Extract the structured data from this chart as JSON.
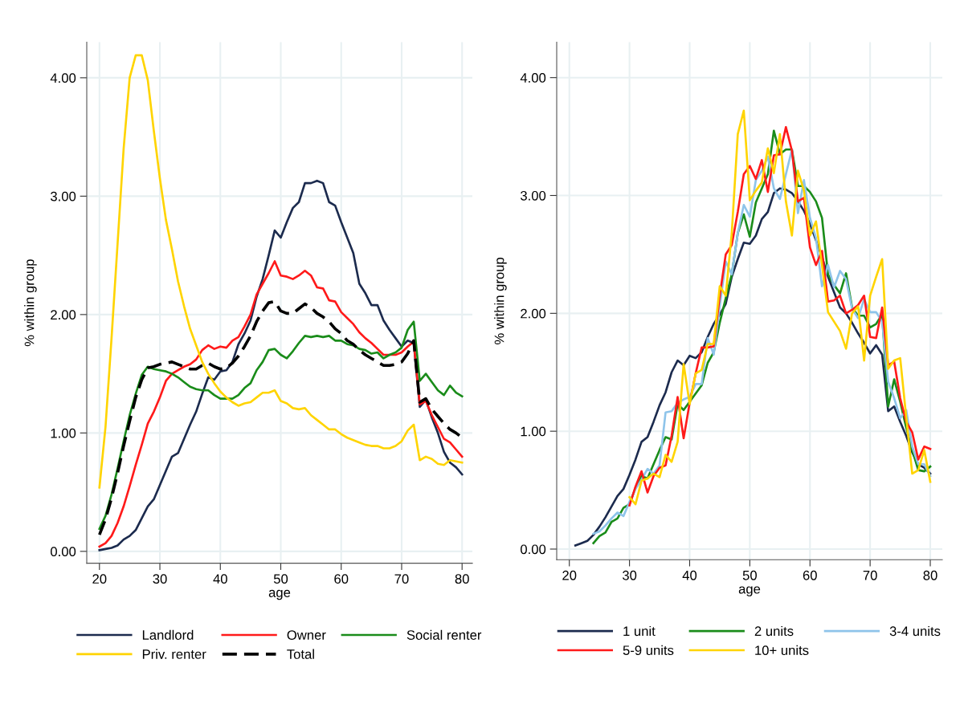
{
  "chart_data": [
    {
      "type": "line",
      "xlabel": "age",
      "ylabel": "% within group",
      "xlim": [
        17.9,
        81.7
      ],
      "ylim": [
        -0.1,
        4.3
      ],
      "xticks": [
        20,
        30,
        40,
        50,
        60,
        70,
        80
      ],
      "yticks": [
        {
          "value": 0,
          "label": "0.00"
        },
        {
          "value": 1,
          "label": "1.00"
        },
        {
          "value": 2,
          "label": "2.00"
        },
        {
          "value": 3,
          "label": "3.00"
        },
        {
          "value": 4,
          "label": "4.00"
        }
      ],
      "grid": true,
      "legend": "bottom",
      "line_style": "solid",
      "x": [
        20,
        21,
        22,
        23,
        24,
        25,
        26,
        27,
        28,
        29,
        30,
        31,
        32,
        33,
        34,
        35,
        36,
        37,
        38,
        39,
        40,
        41,
        42,
        43,
        44,
        45,
        46,
        47,
        48,
        49,
        50,
        51,
        52,
        53,
        54,
        55,
        56,
        57,
        58,
        59,
        60,
        61,
        62,
        63,
        64,
        65,
        66,
        67,
        68,
        69,
        70,
        71,
        72,
        73,
        74,
        75,
        76,
        77,
        78,
        79,
        80
      ],
      "series": [
        {
          "name": "Landlord",
          "color": "#1c2b4e",
          "values": [
            0.01,
            0.02,
            0.03,
            0.05,
            0.1,
            0.13,
            0.18,
            0.28,
            0.38,
            0.44,
            0.56,
            0.68,
            0.8,
            0.83,
            0.95,
            1.07,
            1.18,
            1.33,
            1.47,
            1.45,
            1.52,
            1.53,
            1.6,
            1.75,
            1.84,
            1.95,
            2.15,
            2.3,
            2.5,
            2.71,
            2.65,
            2.78,
            2.9,
            2.95,
            3.11,
            3.11,
            3.13,
            3.11,
            2.95,
            2.92,
            2.78,
            2.65,
            2.52,
            2.26,
            2.18,
            2.08,
            2.08,
            1.95,
            1.87,
            1.8,
            1.73,
            1.78,
            1.76,
            1.22,
            1.28,
            1.13,
            1.0,
            0.84,
            0.75,
            0.71,
            0.65
          ]
        },
        {
          "name": "Owner",
          "color": "#ff1a1a",
          "values": [
            0.04,
            0.07,
            0.13,
            0.24,
            0.38,
            0.55,
            0.73,
            0.9,
            1.08,
            1.18,
            1.3,
            1.44,
            1.5,
            1.53,
            1.56,
            1.58,
            1.62,
            1.7,
            1.74,
            1.71,
            1.73,
            1.72,
            1.78,
            1.81,
            1.9,
            2.0,
            2.17,
            2.26,
            2.35,
            2.45,
            2.33,
            2.32,
            2.3,
            2.33,
            2.37,
            2.33,
            2.23,
            2.22,
            2.12,
            2.11,
            2.02,
            1.97,
            1.92,
            1.85,
            1.8,
            1.76,
            1.71,
            1.66,
            1.66,
            1.66,
            1.68,
            1.73,
            1.77,
            1.24,
            1.27,
            1.15,
            1.05,
            0.95,
            0.92,
            0.86,
            0.8
          ]
        },
        {
          "name": "Social renter",
          "color": "#1a8c1a",
          "values": [
            0.19,
            0.3,
            0.48,
            0.7,
            0.93,
            1.15,
            1.33,
            1.49,
            1.56,
            1.54,
            1.53,
            1.52,
            1.5,
            1.47,
            1.43,
            1.39,
            1.37,
            1.36,
            1.36,
            1.32,
            1.29,
            1.29,
            1.29,
            1.32,
            1.38,
            1.42,
            1.53,
            1.6,
            1.7,
            1.71,
            1.66,
            1.63,
            1.69,
            1.76,
            1.82,
            1.81,
            1.82,
            1.81,
            1.82,
            1.78,
            1.78,
            1.75,
            1.74,
            1.71,
            1.7,
            1.67,
            1.68,
            1.63,
            1.66,
            1.68,
            1.72,
            1.87,
            1.94,
            1.44,
            1.5,
            1.43,
            1.36,
            1.32,
            1.4,
            1.34,
            1.31
          ]
        },
        {
          "name": "Priv. renter",
          "color": "#ffd400",
          "values": [
            0.54,
            1.05,
            1.8,
            2.6,
            3.4,
            4.0,
            4.19,
            4.19,
            3.98,
            3.55,
            3.15,
            2.8,
            2.55,
            2.28,
            2.07,
            1.88,
            1.74,
            1.6,
            1.5,
            1.42,
            1.35,
            1.3,
            1.26,
            1.23,
            1.25,
            1.26,
            1.3,
            1.34,
            1.34,
            1.36,
            1.27,
            1.25,
            1.21,
            1.2,
            1.21,
            1.15,
            1.11,
            1.07,
            1.03,
            1.03,
            0.99,
            0.96,
            0.94,
            0.92,
            0.9,
            0.89,
            0.89,
            0.87,
            0.87,
            0.89,
            0.93,
            1.02,
            1.07,
            0.77,
            0.8,
            0.78,
            0.74,
            0.73,
            0.77,
            0.76,
            0.75
          ]
        },
        {
          "name": "Total",
          "color": "#000000",
          "line_style": "dashed",
          "values": [
            0.14,
            0.27,
            0.45,
            0.66,
            0.89,
            1.1,
            1.3,
            1.45,
            1.55,
            1.56,
            1.58,
            1.59,
            1.6,
            1.58,
            1.56,
            1.54,
            1.54,
            1.57,
            1.59,
            1.56,
            1.54,
            1.55,
            1.59,
            1.65,
            1.73,
            1.82,
            1.94,
            2.03,
            2.1,
            2.11,
            2.03,
            2.01,
            2.01,
            2.05,
            2.09,
            2.06,
            2.01,
            1.98,
            1.94,
            1.88,
            1.84,
            1.78,
            1.75,
            1.7,
            1.66,
            1.63,
            1.6,
            1.57,
            1.57,
            1.58,
            1.6,
            1.67,
            1.78,
            1.26,
            1.29,
            1.2,
            1.14,
            1.08,
            1.03,
            1.0,
            0.96
          ]
        }
      ]
    },
    {
      "type": "line",
      "xlabel": "age",
      "ylabel": "% within group",
      "xlim": [
        17.9,
        82.0
      ],
      "ylim": [
        -0.09,
        4.3
      ],
      "xticks": [
        20,
        30,
        40,
        50,
        60,
        70,
        80
      ],
      "yticks": [
        {
          "value": 0,
          "label": "0.00"
        },
        {
          "value": 1,
          "label": "1.00"
        },
        {
          "value": 2,
          "label": "2.00"
        },
        {
          "value": 3,
          "label": "3.00"
        },
        {
          "value": 4,
          "label": "4.00"
        }
      ],
      "grid": true,
      "legend": "bottom",
      "line_style": "solid",
      "x": [
        21,
        22,
        23,
        24,
        25,
        26,
        27,
        28,
        29,
        30,
        31,
        32,
        33,
        34,
        35,
        36,
        37,
        38,
        39,
        40,
        41,
        42,
        43,
        44,
        45,
        46,
        47,
        48,
        49,
        50,
        51,
        52,
        53,
        54,
        55,
        56,
        57,
        58,
        59,
        60,
        61,
        62,
        63,
        64,
        65,
        66,
        67,
        68,
        69,
        70,
        71,
        72,
        73,
        74,
        75,
        76,
        77,
        78,
        79,
        80
      ],
      "series": [
        {
          "name": "1 unit",
          "color": "#1c2b4e",
          "values": [
            0.03,
            0.05,
            0.07,
            0.12,
            0.19,
            0.27,
            0.36,
            0.45,
            0.51,
            0.63,
            0.76,
            0.91,
            0.95,
            1.08,
            1.22,
            1.33,
            1.5,
            1.6,
            1.56,
            1.64,
            1.62,
            1.67,
            1.8,
            1.91,
            1.99,
            2.08,
            2.31,
            2.46,
            2.6,
            2.59,
            2.66,
            2.8,
            2.86,
            3.02,
            3.06,
            3.05,
            3.02,
            2.95,
            2.87,
            2.76,
            2.62,
            2.48,
            2.31,
            2.18,
            2.05,
            2.0,
            1.92,
            1.83,
            1.75,
            1.66,
            1.73,
            1.65,
            1.17,
            1.21,
            1.08,
            0.96,
            0.82,
            0.72,
            0.69,
            0.64
          ]
        },
        {
          "name": "2 units",
          "color": "#1a8c1a",
          "values": [
            null,
            null,
            null,
            0.05,
            0.11,
            0.14,
            0.23,
            0.26,
            0.35,
            0.38,
            0.52,
            0.62,
            0.6,
            0.72,
            0.84,
            0.95,
            0.93,
            1.23,
            1.18,
            1.25,
            1.32,
            1.39,
            1.58,
            1.67,
            1.92,
            2.13,
            2.33,
            2.68,
            2.84,
            2.65,
            2.94,
            3.06,
            3.18,
            3.55,
            3.35,
            3.39,
            3.39,
            3.08,
            3.08,
            3.03,
            2.95,
            2.81,
            2.33,
            2.24,
            2.17,
            2.34,
            2.05,
            1.98,
            1.98,
            1.88,
            1.91,
            1.99,
            1.21,
            1.44,
            1.25,
            1.03,
            0.84,
            0.67,
            0.66,
            0.7
          ]
        },
        {
          "name": "3-4 units",
          "color": "#8ec4ea",
          "values": [
            null,
            null,
            null,
            0.13,
            0.15,
            0.2,
            0.26,
            0.31,
            0.28,
            0.4,
            0.51,
            0.59,
            0.68,
            0.64,
            0.71,
            1.16,
            1.17,
            1.24,
            1.27,
            1.29,
            1.4,
            1.4,
            1.79,
            1.65,
            2.06,
            2.44,
            2.33,
            2.68,
            2.92,
            2.82,
            3.13,
            3.21,
            3.33,
            3.06,
            2.97,
            3.18,
            3.39,
            2.85,
            3.13,
            2.81,
            2.64,
            2.23,
            2.41,
            2.22,
            2.36,
            2.29,
            2.04,
            1.96,
            2.12,
            2.01,
            2.01,
            1.93,
            1.42,
            1.28,
            1.11,
            1.18,
            0.87,
            0.72,
            0.72,
            0.62
          ]
        },
        {
          "name": "5-9 units",
          "color": "#ff1a1a",
          "values": [
            null,
            null,
            null,
            null,
            null,
            null,
            null,
            null,
            null,
            0.37,
            0.53,
            0.66,
            0.48,
            0.62,
            0.69,
            0.71,
            0.96,
            1.29,
            0.94,
            1.24,
            1.49,
            1.71,
            1.71,
            1.72,
            2.15,
            2.5,
            2.58,
            2.86,
            3.18,
            3.25,
            3.14,
            3.3,
            3.03,
            3.34,
            3.35,
            3.58,
            3.38,
            2.95,
            2.98,
            2.56,
            2.41,
            2.53,
            2.1,
            2.11,
            2.15,
            2.0,
            2.03,
            2.07,
            2.15,
            1.8,
            1.79,
            2.05,
            1.56,
            1.59,
            1.28,
            1.08,
            0.99,
            0.76,
            0.87,
            0.85
          ]
        },
        {
          "name": "10+ units",
          "color": "#ffd400",
          "values": [
            null,
            null,
            null,
            null,
            null,
            null,
            null,
            null,
            null,
            0.44,
            0.38,
            0.58,
            0.6,
            0.64,
            0.61,
            0.8,
            0.74,
            0.91,
            1.57,
            1.23,
            1.49,
            1.52,
            1.74,
            1.74,
            2.23,
            2.15,
            2.68,
            3.52,
            3.72,
            2.96,
            3.04,
            3.11,
            3.4,
            3.19,
            3.52,
            2.95,
            2.66,
            3.21,
            3.04,
            2.66,
            2.78,
            2.41,
            2.01,
            1.93,
            1.85,
            1.7,
            2.0,
            2.06,
            1.6,
            2.15,
            2.31,
            2.46,
            1.53,
            1.6,
            1.62,
            1.12,
            0.64,
            0.67,
            0.84,
            0.57
          ]
        }
      ]
    }
  ]
}
